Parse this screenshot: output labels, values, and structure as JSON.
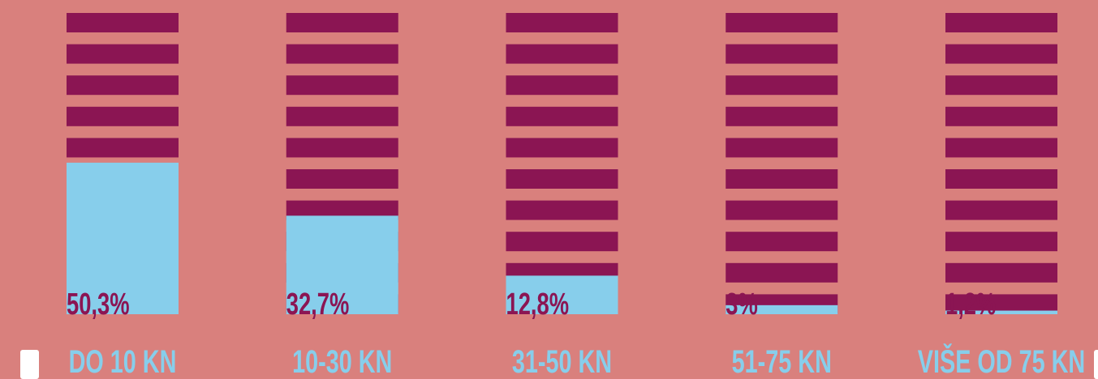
{
  "chart_data": {
    "type": "bar",
    "categories": [
      "DO 10 KN",
      "10-30 KN",
      "31-50 KN",
      "51-75 KN",
      "VIŠE OD 75 KN"
    ],
    "values": [
      50.3,
      32.7,
      12.8,
      3,
      1.2
    ],
    "value_labels": [
      "50,3%",
      "32,7%",
      "12,8%",
      "3%",
      "1,2%"
    ],
    "color": "#87ceeb",
    "ylim": [
      0,
      100
    ]
  }
}
